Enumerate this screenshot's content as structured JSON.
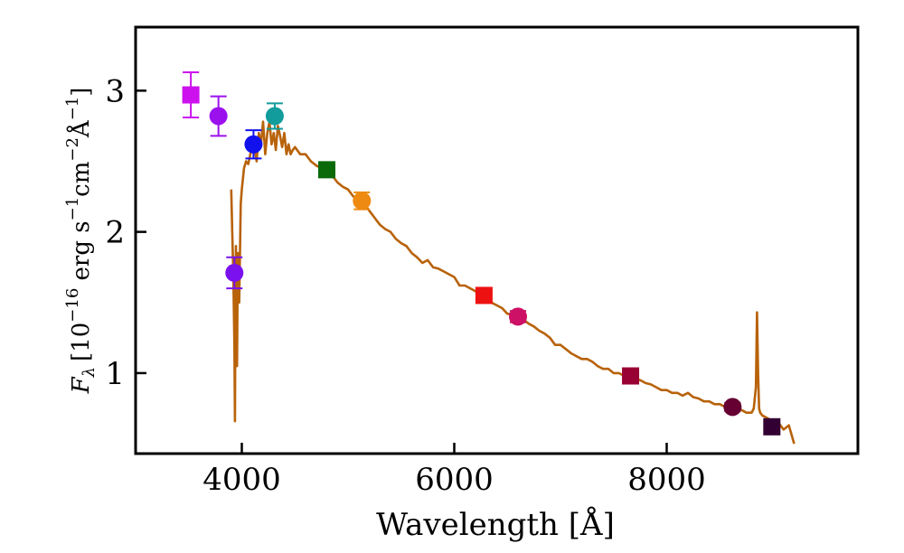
{
  "chart_data": {
    "type": "line",
    "xlabel": "Wavelength [Å]",
    "ylabel": "F_λ [10^-16 erg s^-1 cm^-2 Å^-1]",
    "ylabel_parts": {
      "symbol": "F",
      "symbol_sub": "λ",
      "open": "[10",
      "exp1": "−16",
      "erg": " erg s",
      "exp2": "−1",
      "cm": "cm",
      "exp3": "−2",
      "ang": "Å",
      "exp4": "−1",
      "close": "]"
    },
    "xlim": [
      3000,
      9800
    ],
    "ylim": [
      0.43,
      3.45
    ],
    "xticks": [
      4000,
      6000,
      8000
    ],
    "yticks": [
      1,
      2,
      3
    ],
    "xtick_labels": [
      "4000",
      "6000",
      "8000"
    ],
    "ytick_labels": [
      "1",
      "2",
      "3"
    ],
    "grid": false,
    "legend": "none",
    "spectrum": {
      "color": "#b8620a",
      "x": [
        3900,
        3910,
        3920,
        3930,
        3935,
        3940,
        3945,
        3950,
        3955,
        3960,
        3965,
        3970,
        3975,
        3980,
        3990,
        4000,
        4020,
        4040,
        4060,
        4080,
        4100,
        4120,
        4140,
        4160,
        4180,
        4200,
        4220,
        4240,
        4260,
        4280,
        4300,
        4320,
        4340,
        4360,
        4380,
        4400,
        4420,
        4440,
        4460,
        4480,
        4500,
        4550,
        4600,
        4650,
        4700,
        4750,
        4800,
        4850,
        4900,
        4950,
        5000,
        5050,
        5100,
        5150,
        5200,
        5250,
        5300,
        5350,
        5400,
        5450,
        5500,
        5550,
        5600,
        5650,
        5700,
        5750,
        5800,
        5850,
        5900,
        5950,
        6000,
        6050,
        6100,
        6150,
        6200,
        6250,
        6300,
        6350,
        6400,
        6450,
        6500,
        6550,
        6600,
        6650,
        6700,
        6750,
        6800,
        6850,
        6900,
        6950,
        7000,
        7050,
        7100,
        7150,
        7200,
        7250,
        7300,
        7350,
        7400,
        7450,
        7500,
        7550,
        7600,
        7650,
        7700,
        7750,
        7800,
        7850,
        7900,
        7950,
        8000,
        8050,
        8100,
        8150,
        8200,
        8250,
        8300,
        8350,
        8400,
        8450,
        8500,
        8550,
        8600,
        8650,
        8700,
        8750,
        8800,
        8820,
        8840,
        8850,
        8860,
        8870,
        8880,
        8900,
        8950,
        9000,
        9050,
        9100,
        9150,
        9200
      ],
      "y": [
        2.3,
        2.0,
        1.7,
        1.2,
        0.66,
        1.5,
        1.9,
        1.1,
        1.05,
        1.6,
        1.85,
        1.6,
        1.5,
        1.7,
        2.2,
        2.3,
        2.45,
        2.5,
        2.48,
        2.55,
        2.62,
        2.6,
        2.5,
        2.7,
        2.62,
        2.78,
        2.55,
        2.7,
        2.78,
        2.62,
        2.7,
        2.58,
        2.75,
        2.68,
        2.6,
        2.7,
        2.55,
        2.62,
        2.55,
        2.58,
        2.6,
        2.55,
        2.55,
        2.5,
        2.47,
        2.45,
        2.44,
        2.4,
        2.35,
        2.32,
        2.3,
        2.25,
        2.22,
        2.2,
        2.15,
        2.1,
        2.05,
        2.02,
        2.0,
        1.95,
        1.92,
        1.9,
        1.85,
        1.82,
        1.78,
        1.8,
        1.75,
        1.74,
        1.72,
        1.7,
        1.68,
        1.62,
        1.62,
        1.6,
        1.58,
        1.55,
        1.55,
        1.5,
        1.48,
        1.46,
        1.42,
        1.42,
        1.4,
        1.38,
        1.35,
        1.33,
        1.3,
        1.28,
        1.25,
        1.2,
        1.2,
        1.17,
        1.14,
        1.12,
        1.1,
        1.1,
        1.08,
        1.05,
        1.03,
        1.03,
        1.0,
        1.0,
        0.98,
        0.98,
        0.96,
        0.95,
        0.93,
        0.92,
        0.9,
        0.88,
        0.88,
        0.86,
        0.86,
        0.84,
        0.86,
        0.83,
        0.82,
        0.8,
        0.8,
        0.78,
        0.78,
        0.76,
        0.75,
        0.74,
        0.74,
        0.72,
        0.72,
        0.75,
        0.9,
        1.43,
        1.0,
        0.75,
        0.72,
        0.7,
        0.68,
        0.66,
        0.65,
        0.6,
        0.63,
        0.5
      ]
    },
    "points": [
      {
        "x": 3520,
        "y": 2.97,
        "err": 0.16,
        "marker": "square",
        "color": "#cc11ee"
      },
      {
        "x": 3780,
        "y": 2.82,
        "err": 0.14,
        "marker": "circle",
        "color": "#9a11ee"
      },
      {
        "x": 3930,
        "y": 1.71,
        "err": 0.11,
        "marker": "circle",
        "color": "#7a11ee"
      },
      {
        "x": 4110,
        "y": 2.62,
        "err": 0.1,
        "marker": "circle",
        "color": "#1111ee"
      },
      {
        "x": 4310,
        "y": 2.82,
        "err": 0.09,
        "marker": "circle",
        "color": "#129c9c"
      },
      {
        "x": 4800,
        "y": 2.44,
        "err": 0.05,
        "marker": "square",
        "color": "#0a6a0a"
      },
      {
        "x": 5130,
        "y": 2.22,
        "err": 0.06,
        "marker": "circle",
        "color": "#ee8a11"
      },
      {
        "x": 6280,
        "y": 1.55,
        "err": 0.04,
        "marker": "square",
        "color": "#ee1111"
      },
      {
        "x": 6600,
        "y": 1.4,
        "err": 0.04,
        "marker": "circle",
        "color": "#cc1166"
      },
      {
        "x": 7660,
        "y": 0.98,
        "err": 0.03,
        "marker": "square",
        "color": "#990033"
      },
      {
        "x": 8620,
        "y": 0.76,
        "err": 0.03,
        "marker": "circle",
        "color": "#660033"
      },
      {
        "x": 8990,
        "y": 0.62,
        "err": 0.03,
        "marker": "square",
        "color": "#330033"
      }
    ]
  }
}
